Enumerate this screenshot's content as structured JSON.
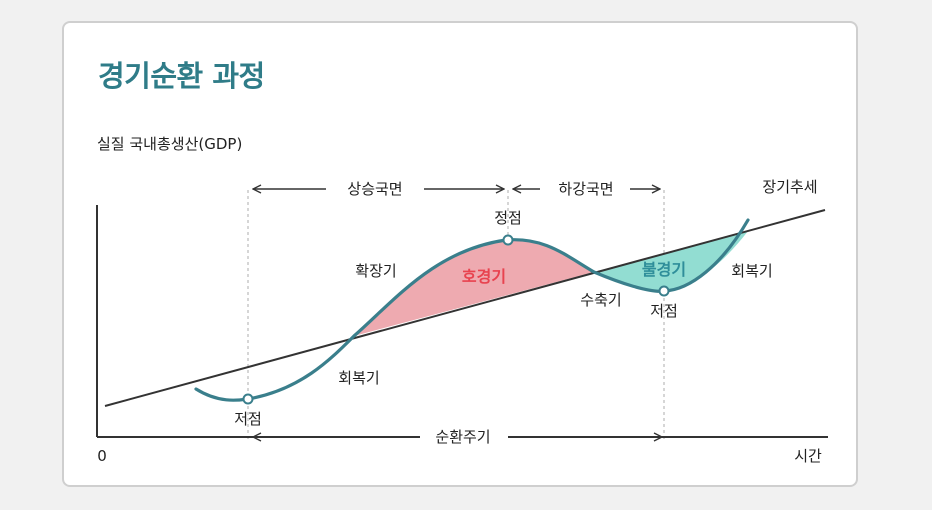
{
  "title": "경기순환 과정",
  "y_axis_label": "실질 국내총생산(GDP)",
  "x_axis_label": "시간",
  "origin_label": "0",
  "trend_label": "장기추세",
  "phases": {
    "rising": "상승국면",
    "falling": "하강국면"
  },
  "cycle_label": "순환주기",
  "points": {
    "trough_left": "저점",
    "peak": "정점",
    "trough_right": "저점"
  },
  "stages": {
    "recovery_left": "회복기",
    "expansion": "확장기",
    "contraction": "수축기",
    "recovery_right": "회복기"
  },
  "regions": {
    "boom": "호경기",
    "recession": "불경기"
  },
  "colors": {
    "title": "#2f7c88",
    "curve": "#3a7f8c",
    "trend": "#333333",
    "boom_fill": "#eeaab0",
    "boom_text": "#e8434f",
    "recession_fill": "#92ddd2",
    "recession_text": "#2f8e9a",
    "guide": "#bbbbbb"
  }
}
